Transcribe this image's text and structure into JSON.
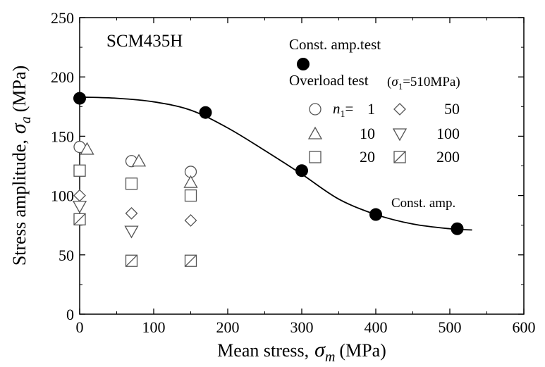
{
  "chart_data": {
    "type": "scatter",
    "specimen_label": "SCM435H",
    "xlabel": {
      "prefix": "Mean stress,",
      "symbol": "σ",
      "sub": "m",
      "unit": "(MPa)"
    },
    "ylabel": {
      "prefix": "Stress amplitude,",
      "symbol": "σ",
      "sub": "a",
      "unit": "(MPa)"
    },
    "xlim": [
      0,
      600
    ],
    "ylim": [
      0,
      250
    ],
    "xticks": [
      0,
      100,
      200,
      300,
      400,
      500,
      600
    ],
    "yticks": [
      0,
      50,
      100,
      150,
      200,
      250
    ],
    "grid": false,
    "legend": {
      "const_title": "Const. amp.test",
      "overload_title": "Overload test",
      "sigma_note": {
        "open": "(",
        "symbol": "σ",
        "sub": "1",
        "rest": "=510MPa)"
      },
      "n_label": {
        "symbol": "n",
        "sub": "1",
        "eq": "="
      },
      "items": [
        {
          "marker": "circle",
          "label": "1"
        },
        {
          "marker": "triangle",
          "label": "10"
        },
        {
          "marker": "square",
          "label": "20"
        },
        {
          "marker": "diamond",
          "label": "50"
        },
        {
          "marker": "triangle-down",
          "label": "100"
        },
        {
          "marker": "square-hatched",
          "label": "200"
        }
      ]
    },
    "curve_label": "Const. amp.",
    "series": [
      {
        "name": "Const. amp.test",
        "marker": "filled-circle",
        "points": [
          [
            0,
            182
          ],
          [
            170,
            170
          ],
          [
            300,
            121
          ],
          [
            400,
            84
          ],
          [
            510,
            72
          ]
        ]
      },
      {
        "name": "1",
        "marker": "circle",
        "points": [
          [
            0,
            141
          ],
          [
            70,
            129
          ],
          [
            150,
            120
          ]
        ]
      },
      {
        "name": "10",
        "marker": "triangle",
        "points": [
          [
            10,
            139
          ],
          [
            80,
            129
          ],
          [
            150,
            111
          ]
        ]
      },
      {
        "name": "20",
        "marker": "square",
        "points": [
          [
            0,
            121
          ],
          [
            70,
            110
          ],
          [
            150,
            100
          ]
        ]
      },
      {
        "name": "50",
        "marker": "diamond",
        "points": [
          [
            0,
            100
          ],
          [
            70,
            85
          ],
          [
            150,
            79
          ]
        ]
      },
      {
        "name": "100",
        "marker": "triangle-down",
        "points": [
          [
            0,
            91
          ],
          [
            70,
            70
          ]
        ]
      },
      {
        "name": "200",
        "marker": "square-hatched",
        "points": [
          [
            0,
            80
          ],
          [
            70,
            45
          ],
          [
            150,
            45
          ]
        ]
      }
    ],
    "fit_curve": {
      "x": [
        0,
        50,
        100,
        150,
        200,
        250,
        300,
        350,
        400,
        450,
        500,
        530
      ],
      "y": [
        183,
        182,
        179,
        172,
        157,
        138,
        118,
        97,
        84,
        76,
        72,
        71
      ]
    }
  }
}
